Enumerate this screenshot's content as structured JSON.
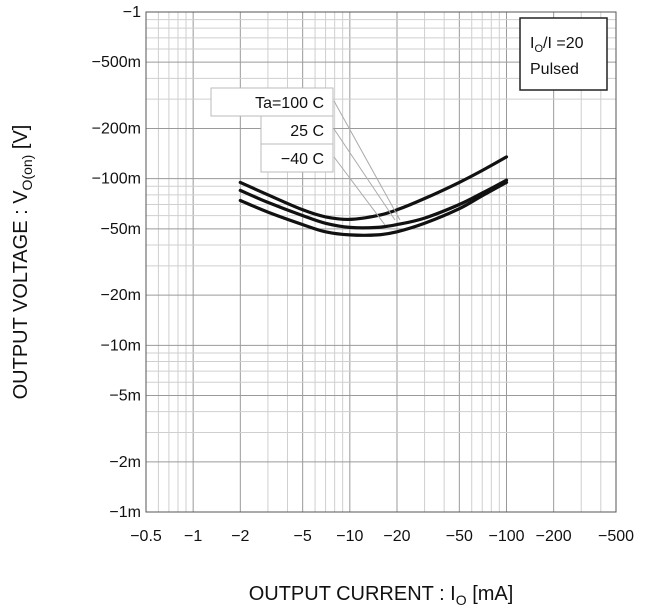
{
  "chart_data": {
    "type": "line",
    "x_scale": "log",
    "y_scale": "log",
    "grid": true,
    "xlabel": {
      "main": "OUTPUT CURRENT : I",
      "sub": "O",
      "unit": " [mA]"
    },
    "ylabel": {
      "main": "OUTPUT VOLTAGE : V",
      "sub": "O(on)",
      "unit": " [V]"
    },
    "xlim": [
      -0.5,
      -500
    ],
    "ylim": [
      -0.001,
      -1
    ],
    "x_ticks": [
      {
        "value": -0.5,
        "label": "−0.5"
      },
      {
        "value": -1,
        "label": "−1"
      },
      {
        "value": -2,
        "label": "−2"
      },
      {
        "value": -5,
        "label": "−5"
      },
      {
        "value": -10,
        "label": "−10"
      },
      {
        "value": -20,
        "label": "−20"
      },
      {
        "value": -50,
        "label": "−50"
      },
      {
        "value": -100,
        "label": "−100"
      },
      {
        "value": -200,
        "label": "−200"
      },
      {
        "value": -500,
        "label": "−500"
      }
    ],
    "y_ticks": [
      {
        "value": -0.001,
        "label": "−1m"
      },
      {
        "value": -0.002,
        "label": "−2m"
      },
      {
        "value": -0.005,
        "label": "−5m"
      },
      {
        "value": -0.01,
        "label": "−10m"
      },
      {
        "value": -0.02,
        "label": "−20m"
      },
      {
        "value": -0.05,
        "label": "−50m"
      },
      {
        "value": -0.1,
        "label": "−100m"
      },
      {
        "value": -0.2,
        "label": "−200m"
      },
      {
        "value": -0.5,
        "label": "−500m"
      },
      {
        "value": -1,
        "label": "−1"
      }
    ],
    "legend": {
      "position": "top-right",
      "lines": [
        {
          "main": "I",
          "sub": "O",
          "rest": "/I =20"
        },
        {
          "main": "Pulsed",
          "sub": "",
          "rest": ""
        }
      ]
    },
    "series": [
      {
        "name": "Ta=100 C",
        "x": [
          -2,
          -3,
          -5,
          -7,
          -10,
          -15,
          -20,
          -30,
          -50,
          -70,
          -100
        ],
        "y": [
          -0.095,
          -0.08,
          -0.065,
          -0.059,
          -0.057,
          -0.06,
          -0.065,
          -0.076,
          -0.095,
          -0.112,
          -0.135
        ]
      },
      {
        "name": "25 C",
        "x": [
          -2,
          -3,
          -5,
          -7,
          -10,
          -15,
          -20,
          -30,
          -50,
          -70,
          -100
        ],
        "y": [
          -0.085,
          -0.072,
          -0.06,
          -0.054,
          -0.051,
          -0.051,
          -0.053,
          -0.058,
          -0.07,
          -0.082,
          -0.098
        ]
      },
      {
        "name": "−40 C",
        "x": [
          -2,
          -3,
          -5,
          -7,
          -10,
          -15,
          -20,
          -30,
          -50,
          -70,
          -100
        ],
        "y": [
          -0.074,
          -0.063,
          -0.053,
          -0.048,
          -0.046,
          -0.046,
          -0.048,
          -0.054,
          -0.066,
          -0.079,
          -0.095
        ]
      }
    ],
    "series_labels": [
      "Ta=100 C",
      "25 C",
      "−40 C"
    ]
  }
}
